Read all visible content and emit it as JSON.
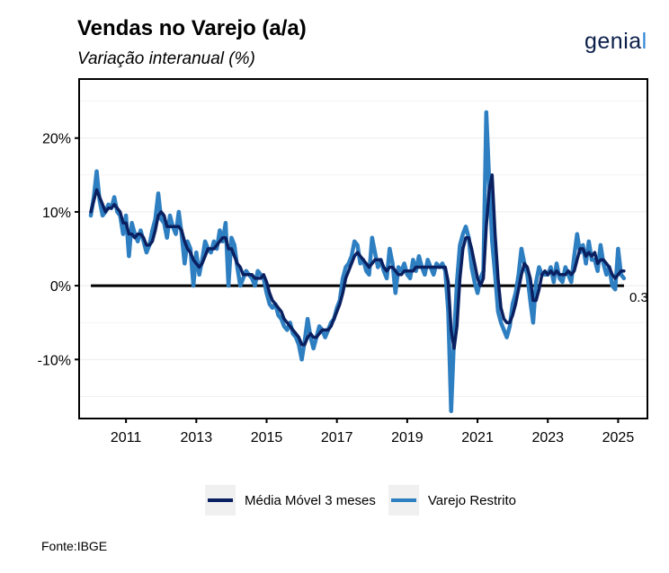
{
  "header": {
    "title": "Vendas no Varejo (a/a)",
    "subtitle": "Variação interanual (%)"
  },
  "logo": {
    "text_main": "genia",
    "text_end": "l"
  },
  "source": "Fonte:IBGE",
  "colors": {
    "media_movel": "#0b2060",
    "varejo": "#2e7fc1",
    "zero_line": "#000000",
    "grid": "#ebebeb"
  },
  "chart_data": {
    "type": "line",
    "x_start": "2010-01",
    "x_step": "1 month",
    "xlim": [
      "2009-09",
      "2025-11"
    ],
    "ylim": [
      -18,
      28
    ],
    "y_ticks": [
      -10,
      0,
      10,
      20
    ],
    "y_tick_labels": [
      "-10%",
      "0%",
      "10%",
      "20%"
    ],
    "x_ticks": [
      2011,
      2013,
      2015,
      2017,
      2019,
      2021,
      2023,
      2025
    ],
    "x_tick_labels": [
      "2011",
      "2013",
      "2015",
      "2017",
      "2019",
      "2021",
      "2023",
      "2025"
    ],
    "grid": true,
    "reference_line": 0,
    "annotation": "0.3",
    "legend_position": "bottom",
    "series": [
      {
        "name": "Varejo Restrito",
        "values": [
          9.5,
          12.0,
          15.5,
          11.5,
          9.5,
          10.0,
          11.0,
          10.5,
          12.0,
          10.0,
          9.5,
          7.0,
          9.5,
          4.0,
          8.5,
          7.0,
          6.0,
          7.5,
          6.0,
          4.5,
          5.5,
          7.5,
          9.0,
          12.5,
          9.0,
          8.5,
          6.5,
          9.5,
          8.0,
          7.0,
          10.0,
          7.0,
          3.0,
          6.0,
          5.0,
          0.0,
          4.5,
          1.5,
          3.5,
          6.0,
          5.0,
          4.5,
          6.0,
          5.0,
          7.5,
          6.0,
          8.5,
          0.0,
          6.5,
          5.5,
          2.5,
          0.0,
          1.0,
          2.0,
          1.5,
          1.0,
          0.0,
          2.0,
          1.5,
          1.0,
          -1.0,
          -2.5,
          -3.0,
          -2.5,
          -4.0,
          -4.5,
          -5.5,
          -6.0,
          -5.0,
          -6.5,
          -7.0,
          -8.0,
          -10.0,
          -7.5,
          -4.5,
          -7.0,
          -8.5,
          -7.0,
          -5.5,
          -6.0,
          -7.0,
          -6.0,
          -5.0,
          -4.5,
          -3.0,
          -2.0,
          1.0,
          2.5,
          3.0,
          4.0,
          6.0,
          5.5,
          3.0,
          3.5,
          2.0,
          1.5,
          6.5,
          4.5,
          2.5,
          3.5,
          2.0,
          1.0,
          5.0,
          3.0,
          -1.0,
          2.5,
          2.0,
          3.0,
          1.5,
          1.0,
          3.5,
          2.0,
          4.0,
          2.5,
          1.5,
          3.5,
          2.5,
          1.5,
          3.0,
          2.5,
          3.0,
          2.0,
          -3.5,
          -17.0,
          -7.0,
          0.5,
          5.5,
          7.0,
          8.0,
          6.5,
          2.5,
          0.5,
          -1.0,
          1.0,
          2.0,
          23.5,
          14.0,
          6.0,
          1.5,
          -3.5,
          -5.0,
          -6.0,
          -7.0,
          -5.5,
          -2.5,
          -1.0,
          1.5,
          5.0,
          3.0,
          1.5,
          -2.0,
          -5.0,
          0.5,
          2.5,
          1.5,
          1.5,
          1.5,
          2.5,
          0.5,
          3.0,
          1.0,
          0.5,
          2.5,
          1.5,
          0.5,
          4.0,
          7.0,
          4.5,
          5.5,
          3.0,
          6.0,
          3.5,
          3.5,
          2.0,
          5.5,
          3.0,
          1.5,
          2.5,
          0.0,
          -0.5,
          5.0,
          1.5,
          1.0
        ]
      },
      {
        "name": "Média Móvel 3 meses",
        "values": [
          10.0,
          11.5,
          13.0,
          12.0,
          11.0,
          10.0,
          10.5,
          10.5,
          11.0,
          10.5,
          10.0,
          8.5,
          8.5,
          7.0,
          7.0,
          6.5,
          7.0,
          7.0,
          6.5,
          5.5,
          5.5,
          6.0,
          7.5,
          9.5,
          10.0,
          9.5,
          8.0,
          8.0,
          8.0,
          8.0,
          8.0,
          7.5,
          6.0,
          5.0,
          4.5,
          3.5,
          3.0,
          2.5,
          3.0,
          4.0,
          5.0,
          5.0,
          5.0,
          5.5,
          6.0,
          6.5,
          6.5,
          5.0,
          5.0,
          4.0,
          3.0,
          2.5,
          1.5,
          1.5,
          1.5,
          1.5,
          1.0,
          1.0,
          1.0,
          1.5,
          0.5,
          -1.0,
          -2.0,
          -2.5,
          -3.0,
          -3.5,
          -4.5,
          -5.0,
          -5.5,
          -6.0,
          -6.5,
          -7.0,
          -8.0,
          -8.0,
          -7.0,
          -6.5,
          -7.0,
          -7.0,
          -6.5,
          -6.0,
          -6.0,
          -6.0,
          -5.5,
          -4.5,
          -3.5,
          -2.5,
          -1.0,
          1.0,
          2.0,
          3.0,
          4.0,
          4.5,
          4.0,
          3.5,
          3.0,
          2.5,
          3.0,
          3.5,
          3.5,
          3.5,
          2.5,
          2.0,
          2.5,
          2.5,
          2.0,
          1.5,
          1.5,
          2.0,
          2.0,
          2.0,
          2.0,
          2.5,
          2.5,
          2.5,
          2.5,
          2.5,
          2.5,
          2.5,
          2.5,
          2.5,
          2.5,
          2.5,
          0.5,
          -6.0,
          -8.5,
          -5.5,
          1.0,
          5.0,
          6.5,
          6.5,
          5.0,
          3.0,
          1.0,
          0.0,
          1.0,
          8.0,
          13.0,
          15.0,
          7.0,
          1.0,
          -3.0,
          -4.5,
          -5.0,
          -5.0,
          -4.0,
          -2.5,
          -0.5,
          1.5,
          3.0,
          2.5,
          1.0,
          -2.0,
          -2.0,
          -0.5,
          1.5,
          2.0,
          1.5,
          2.0,
          1.5,
          2.0,
          1.5,
          1.5,
          1.5,
          2.0,
          1.5,
          2.0,
          3.5,
          5.0,
          5.0,
          4.0,
          4.5,
          4.0,
          4.5,
          3.0,
          3.5,
          3.5,
          3.0,
          2.5,
          1.5,
          1.0,
          1.5,
          2.0,
          2.0
        ]
      }
    ]
  },
  "legend": {
    "items": [
      {
        "label": "Média Móvel 3 meses",
        "color": "#0b2060"
      },
      {
        "label": "Varejo Restrito",
        "color": "#2e7fc1"
      }
    ]
  }
}
